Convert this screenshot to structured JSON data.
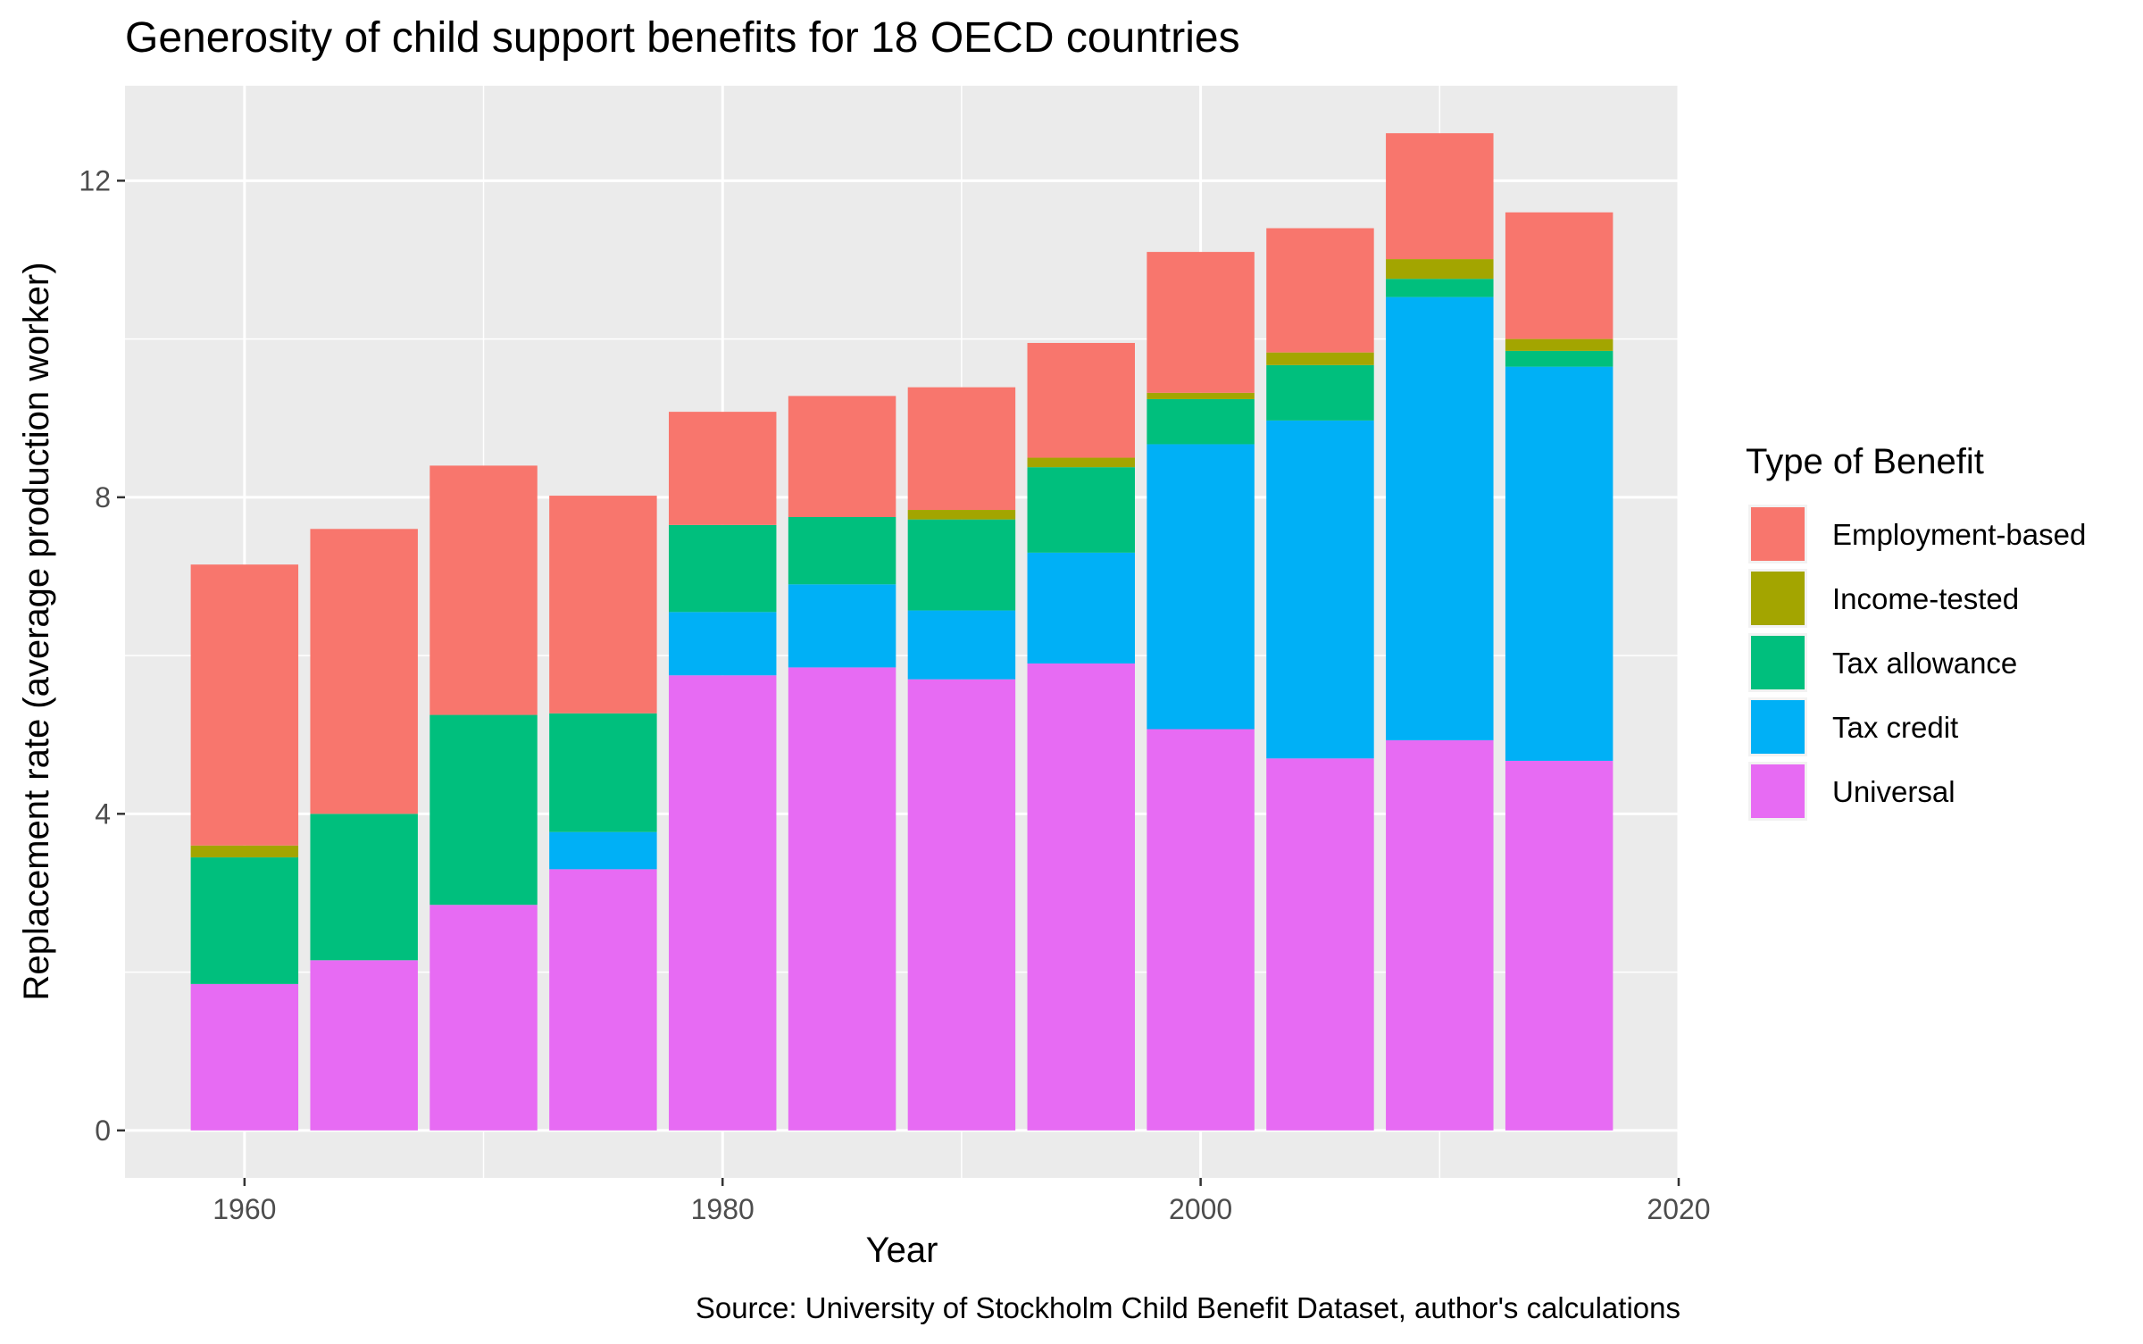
{
  "chart_data": {
    "type": "bar",
    "stacked": true,
    "title": "Generosity of child support benefits for 18 OECD countries",
    "xlabel": "Year",
    "ylabel": "Replacement rate (average production worker)",
    "caption": "Source: University of Stockholm Child Benefit Dataset, author's calculations",
    "x": [
      1960,
      1965,
      1970,
      1975,
      1980,
      1985,
      1990,
      1995,
      2000,
      2005,
      2010,
      2015
    ],
    "xlim": [
      1955,
      2020
    ],
    "ylim": [
      -0.6,
      13.2
    ],
    "xticks": [
      1960,
      1980,
      2000,
      2020
    ],
    "xtick_labels": [
      "1960",
      "1980",
      "2000",
      "2020"
    ],
    "yticks": [
      0,
      4,
      8,
      12
    ],
    "ytick_labels": [
      "0",
      "4",
      "8",
      "12"
    ],
    "grid": true,
    "legend": {
      "title": "Type of Benefit",
      "position": "right"
    },
    "series": [
      {
        "name": "Universal",
        "color": "#E76BF3",
        "values": [
          1.85,
          2.15,
          2.85,
          3.3,
          5.75,
          5.85,
          5.7,
          5.9,
          5.07,
          4.7,
          4.93,
          4.67
        ]
      },
      {
        "name": "Tax credit",
        "color": "#00B0F6",
        "values": [
          0,
          0,
          0,
          0.47,
          0.8,
          1.05,
          0.87,
          1.4,
          3.6,
          4.27,
          5.6,
          4.98
        ]
      },
      {
        "name": "Tax allowance",
        "color": "#00BF7D",
        "values": [
          1.6,
          1.85,
          2.4,
          1.5,
          1.1,
          0.85,
          1.15,
          1.08,
          0.57,
          0.7,
          0.23,
          0.2
        ]
      },
      {
        "name": "Income-tested",
        "color": "#A3A500",
        "values": [
          0.15,
          0,
          0,
          0,
          0,
          0,
          0.12,
          0.12,
          0.08,
          0.16,
          0.25,
          0.15
        ]
      },
      {
        "name": "Employment-based",
        "color": "#F8766D",
        "values": [
          3.55,
          3.6,
          3.15,
          2.75,
          1.43,
          1.53,
          1.55,
          1.45,
          1.78,
          1.57,
          1.59,
          1.6
        ]
      }
    ],
    "legend_order": [
      "Employment-based",
      "Income-tested",
      "Tax allowance",
      "Tax credit",
      "Universal"
    ]
  }
}
